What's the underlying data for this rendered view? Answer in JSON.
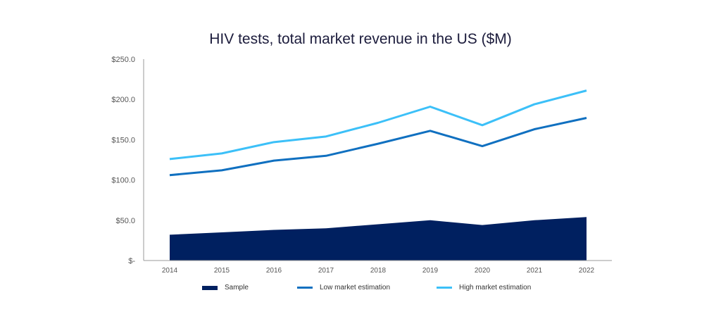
{
  "chart_data": {
    "type": "line",
    "title": "HIV tests, total market revenue in the US ($M)",
    "xlabel": "",
    "ylabel": "",
    "categories": [
      "2014",
      "2015",
      "2016",
      "2017",
      "2018",
      "2019",
      "2020",
      "2021",
      "2022"
    ],
    "ylim": [
      0,
      250
    ],
    "yticks": [
      0,
      50,
      100,
      150,
      200,
      250
    ],
    "ytick_labels": [
      "$-",
      "$50.0",
      "$100.0",
      "$150.0",
      "$200.0",
      "$250.0"
    ],
    "grid": false,
    "legend_position": "bottom",
    "series": [
      {
        "name": "Sample",
        "kind": "area",
        "color": "#002060",
        "values": [
          32,
          35,
          38,
          40,
          45,
          50,
          44,
          50,
          54
        ]
      },
      {
        "name": "Low market estimation",
        "kind": "line",
        "color": "#1070c0",
        "values": [
          106,
          112,
          124,
          130,
          145,
          161,
          142,
          163,
          177
        ]
      },
      {
        "name": "High market estimation",
        "kind": "line",
        "color": "#3cc0f8",
        "values": [
          126,
          133,
          147,
          154,
          171,
          191,
          168,
          194,
          211
        ]
      }
    ]
  }
}
